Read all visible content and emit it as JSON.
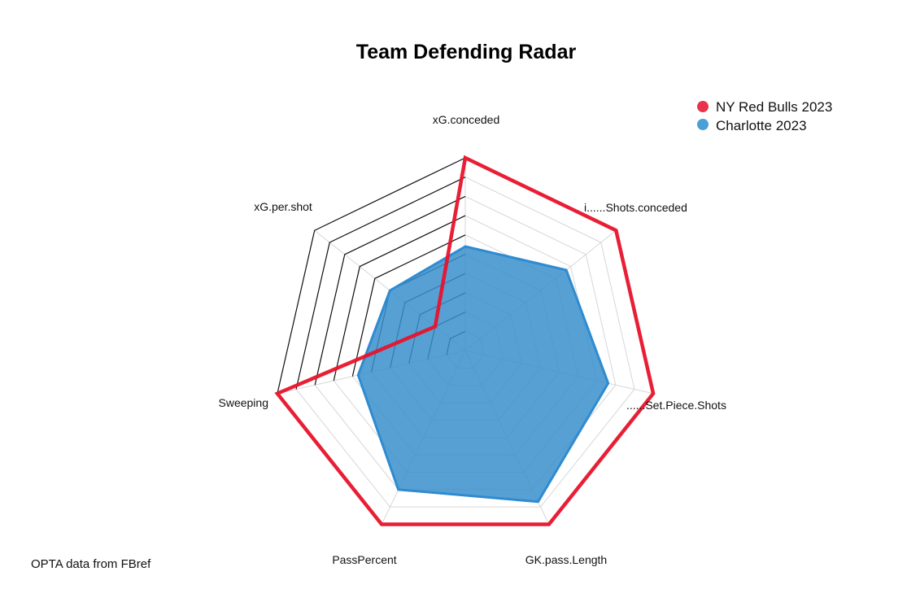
{
  "chart_data": {
    "type": "radar",
    "title": "Team Defending Radar",
    "axes": [
      "xG.conceded",
      "i......Shots.conceded",
      "......Set.Piece.Shots",
      "GK.pass.Length",
      "PassPercent",
      "Sweeping",
      "xG.per.shot"
    ],
    "range": [
      0,
      1
    ],
    "grid_levels": 10,
    "series": [
      {
        "name": "NY Red Bulls 2023",
        "color": "#e8132b",
        "values": [
          1,
          1,
          1,
          1,
          1,
          1,
          0.2
        ]
      },
      {
        "name": "Charlotte 2023",
        "color": "#3a8fcd",
        "values": [
          0.54,
          0.67,
          0.76,
          0.87,
          0.8,
          0.57,
          0.5
        ]
      }
    ],
    "legend_placement": "top-right",
    "caption": "OPTA data from FBref"
  }
}
